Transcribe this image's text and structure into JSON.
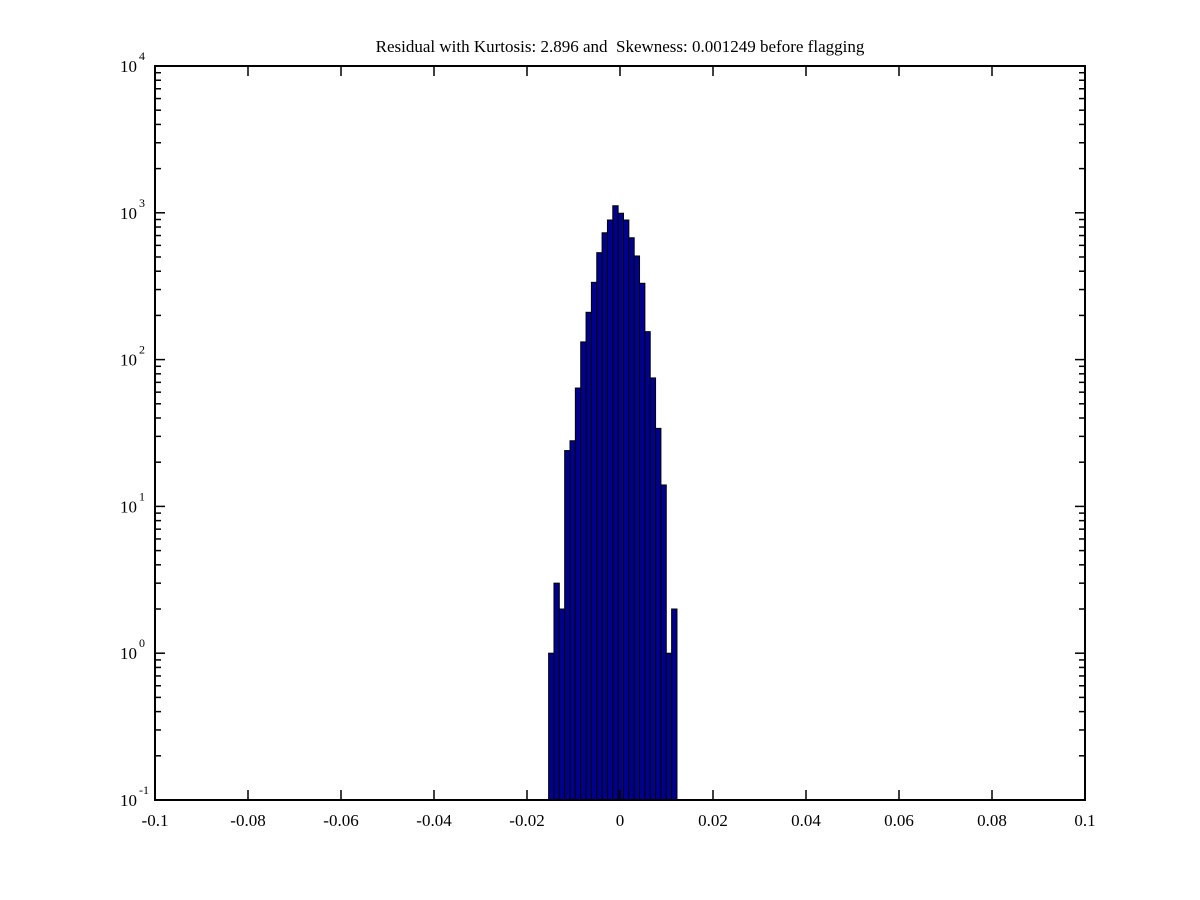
{
  "figure": {
    "background": "#ffffff"
  },
  "chart_data": {
    "type": "bar",
    "subtype": "histogram",
    "title": "Residual with Kurtosis: 2.896 and  Skewness: 0.001249 before flagging",
    "kurtosis": 2.896,
    "skewness": 0.001249,
    "xlabel": "",
    "ylabel": "",
    "x_axis": {
      "min": -0.1,
      "max": 0.1,
      "ticks": [
        -0.1,
        -0.08,
        -0.06,
        -0.04,
        -0.02,
        0,
        0.02,
        0.04,
        0.06,
        0.08,
        0.1
      ],
      "tick_labels": [
        "-0.1",
        "-0.08",
        "-0.06",
        "-0.04",
        "-0.02",
        "0",
        "0.02",
        "0.04",
        "0.06",
        "0.08",
        "0.1"
      ]
    },
    "y_axis": {
      "scale": "log",
      "min_exponent": -1,
      "max_exponent": 4,
      "base_label": "10",
      "decade_exponents": [
        "4",
        "3",
        "2",
        "1",
        "0",
        "-1"
      ],
      "minor_tick_multiples": [
        2,
        3,
        4,
        5,
        6,
        7,
        8,
        9
      ]
    },
    "histogram": {
      "bin_start": -0.01535,
      "bin_width": 0.00115,
      "values": [
        1,
        3,
        2,
        24,
        28,
        64,
        132,
        210,
        336,
        535,
        731,
        893,
        1117,
        993,
        893,
        676,
        508,
        331,
        155,
        75,
        34,
        14,
        1,
        2
      ]
    },
    "legend": null,
    "grid": false,
    "colors": {
      "bar_fill": "#00008f",
      "bar_edge": "#000000",
      "axis": "#000000",
      "text": "#000000",
      "background": "#ffffff"
    }
  }
}
